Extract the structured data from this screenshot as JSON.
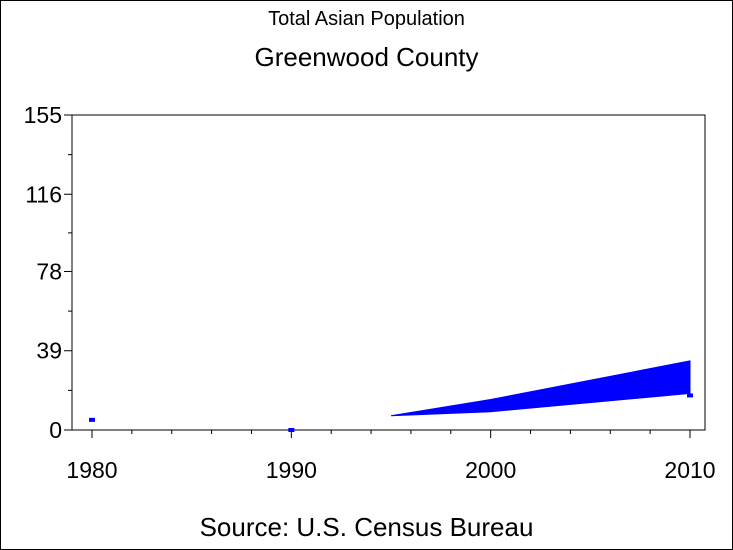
{
  "chart_data": {
    "type": "area",
    "title": "Total Asian Population",
    "subtitle": "Greenwood County",
    "source": "Source: U.S. Census Bureau",
    "xlabel": "",
    "ylabel": "",
    "x": [
      1980,
      1990,
      2000,
      2010
    ],
    "x_tick_labels": [
      "1980",
      "1990",
      "2000",
      "2010"
    ],
    "y_ticks": [
      0,
      39,
      78,
      116,
      155
    ],
    "y_tick_labels": [
      "0",
      "39",
      "78",
      "116",
      "155"
    ],
    "ylim": [
      0,
      155
    ],
    "xlim": [
      1980,
      2010
    ],
    "series": [
      {
        "values": [
          5,
          0,
          12,
          17
        ],
        "upper": [
          5,
          0,
          15,
          34
        ],
        "lower": [
          5,
          0,
          9,
          18
        ]
      }
    ],
    "band_start_x": 1995,
    "band_start_value": 7,
    "grid": false,
    "color": "#0000ff"
  }
}
